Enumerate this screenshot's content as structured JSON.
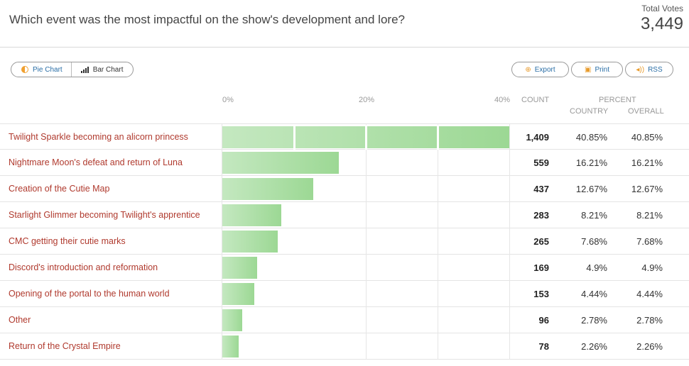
{
  "header": {
    "question": "Which event was the most impactful on the show's development and lore?",
    "total_label": "Total Votes",
    "total_value": "3,449"
  },
  "toolbar": {
    "pie_label": "Pie Chart",
    "bar_label": "Bar Chart",
    "export_label": "Export",
    "print_label": "Print",
    "rss_label": "RSS"
  },
  "axis": {
    "ticks": [
      "0%",
      "20%",
      "40%"
    ]
  },
  "columns": {
    "count": "COUNT",
    "percent": "PERCENT",
    "country": "COUNTRY",
    "overall": "OVERALL"
  },
  "chart_data": {
    "type": "bar",
    "orientation": "horizontal",
    "xlim": [
      0,
      40
    ],
    "categories": [
      "Twilight Sparkle becoming an alicorn princess",
      "Nightmare Moon's defeat and return of Luna",
      "Creation of the Cutie Map",
      "Starlight Glimmer becoming Twilight's apprentice",
      "CMC getting their cutie marks",
      "Discord's introduction and reformation",
      "Opening of the portal to the human world",
      "Other",
      "Return of the Crystal Empire"
    ],
    "values": [
      40.85,
      16.21,
      12.67,
      8.21,
      7.68,
      4.9,
      4.44,
      2.78,
      2.26
    ],
    "counts": [
      "1,409",
      "559",
      "437",
      "283",
      "265",
      "169",
      "153",
      "96",
      "78"
    ],
    "country_pct": [
      "40.85%",
      "16.21%",
      "12.67%",
      "8.21%",
      "7.68%",
      "4.9%",
      "4.44%",
      "2.78%",
      "2.26%"
    ],
    "overall_pct": [
      "40.85%",
      "16.21%",
      "12.67%",
      "8.21%",
      "7.68%",
      "4.9%",
      "4.44%",
      "2.78%",
      "2.26%"
    ]
  },
  "colors": {
    "bar_start": "#c4e8c0",
    "bar_end": "#9cd894",
    "label": "#b03a2e",
    "link": "#2a6ea6",
    "icon_accent": "#e89b2c"
  }
}
